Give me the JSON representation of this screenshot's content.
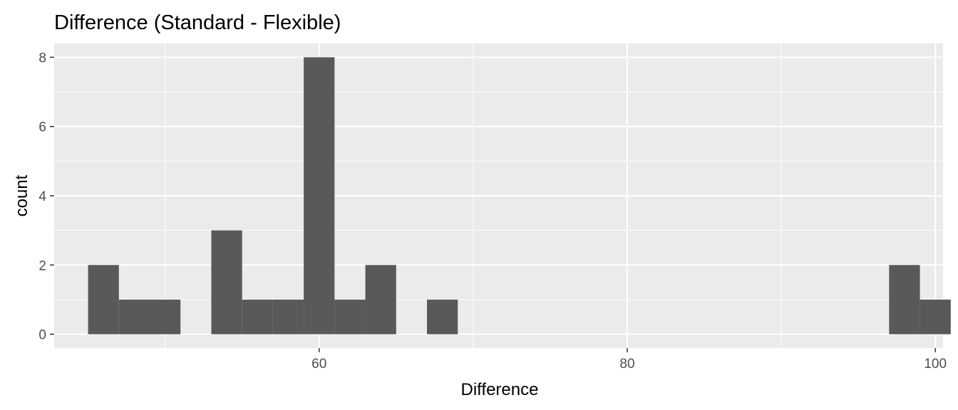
{
  "chart_data": {
    "type": "bar",
    "title": "Difference (Standard - Flexible)",
    "xlabel": "Difference",
    "ylabel": "count",
    "xlim": [
      42.8,
      100.5
    ],
    "ylim": [
      -0.4,
      8.4
    ],
    "x_ticks": [
      60,
      80,
      100
    ],
    "x_minor_ticks": [
      50,
      70,
      90
    ],
    "y_ticks": [
      0,
      2,
      4,
      6,
      8
    ],
    "y_minor_ticks": [
      1,
      3,
      5,
      7
    ],
    "bin_width": 2,
    "bins": [
      {
        "x0": 45,
        "x1": 47,
        "count": 2
      },
      {
        "x0": 47,
        "x1": 49,
        "count": 1
      },
      {
        "x0": 49,
        "x1": 51,
        "count": 1
      },
      {
        "x0": 53,
        "x1": 55,
        "count": 3
      },
      {
        "x0": 55,
        "x1": 57,
        "count": 1
      },
      {
        "x0": 57,
        "x1": 59,
        "count": 1
      },
      {
        "x0": 59,
        "x1": 61,
        "count": 8
      },
      {
        "x0": 61,
        "x1": 63,
        "count": 1
      },
      {
        "x0": 63,
        "x1": 65,
        "count": 2
      },
      {
        "x0": 67,
        "x1": 69,
        "count": 1
      },
      {
        "x0": 97,
        "x1": 99,
        "count": 2
      },
      {
        "x0": 99,
        "x1": 101,
        "count": 1
      }
    ],
    "grid": true,
    "panel_color": "#ebebeb",
    "bar_color": "#595959"
  }
}
